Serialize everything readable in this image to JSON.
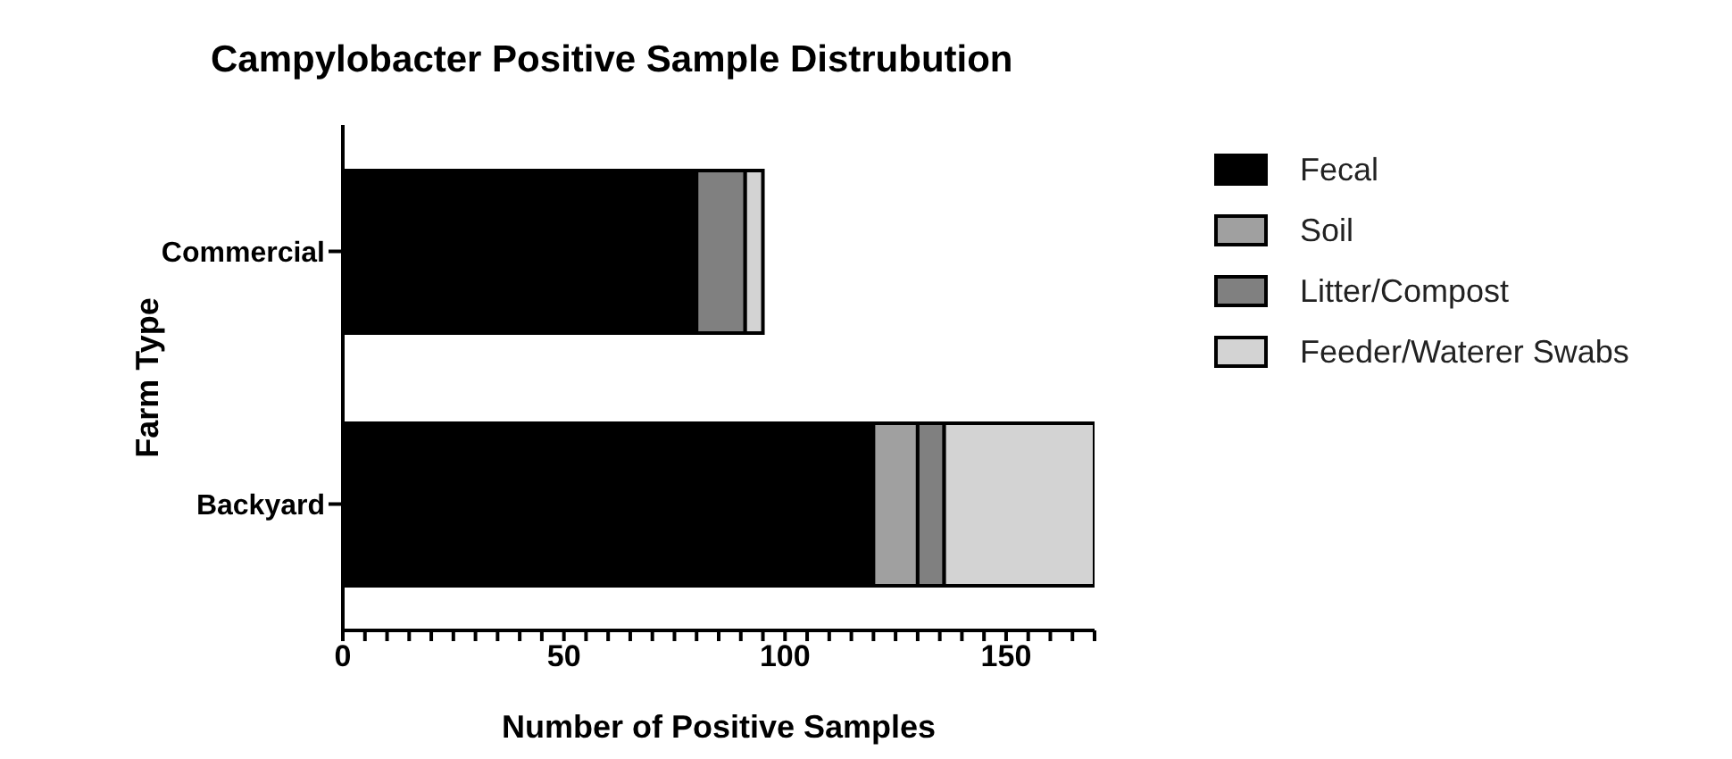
{
  "chart_data": {
    "type": "bar",
    "orientation": "horizontal",
    "stacked": true,
    "title": "Campylobacter Positive Sample Distrubution",
    "xlabel": "Number of Positive Samples",
    "ylabel": "Farm Type",
    "categories": [
      "Commercial",
      "Backyard"
    ],
    "series": [
      {
        "name": "Fecal",
        "color": "#000000",
        "values": [
          80,
          120
        ]
      },
      {
        "name": "Soil",
        "color": "#a0a0a0",
        "values": [
          0,
          10
        ]
      },
      {
        "name": "Litter/Compost",
        "color": "#808080",
        "values": [
          11,
          6
        ]
      },
      {
        "name": "Feeder/Waterer Swabs",
        "color": "#d3d3d3",
        "values": [
          4,
          34
        ]
      }
    ],
    "xlim": [
      0,
      170
    ],
    "xticks": [
      0,
      {
        "value": 5,
        "label": null
      },
      {
        "value": 10,
        "label": null
      },
      {
        "value": 15,
        "label": null
      },
      {
        "value": 20,
        "label": null
      },
      {
        "value": 25,
        "label": null
      },
      {
        "value": 30,
        "label": null
      },
      {
        "value": 35,
        "label": null
      },
      {
        "value": 40,
        "label": null
      },
      {
        "value": 45,
        "label": null
      },
      50,
      {
        "value": 55,
        "label": null
      },
      {
        "value": 60,
        "label": null
      },
      {
        "value": 65,
        "label": null
      },
      {
        "value": 70,
        "label": null
      },
      {
        "value": 75,
        "label": null
      },
      {
        "value": 80,
        "label": null
      },
      {
        "value": 85,
        "label": null
      },
      {
        "value": 90,
        "label": null
      },
      {
        "value": 95,
        "label": null
      },
      100,
      {
        "value": 105,
        "label": null
      },
      {
        "value": 110,
        "label": null
      },
      {
        "value": 115,
        "label": null
      },
      {
        "value": 120,
        "label": null
      },
      {
        "value": 125,
        "label": null
      },
      {
        "value": 130,
        "label": null
      },
      {
        "value": 135,
        "label": null
      },
      {
        "value": 140,
        "label": null
      },
      {
        "value": 145,
        "label": null
      },
      150,
      {
        "value": 155,
        "label": null
      },
      {
        "value": 160,
        "label": null
      },
      {
        "value": 165,
        "label": null
      },
      {
        "value": 170,
        "label": null
      }
    ],
    "grid": false,
    "legend": "top right"
  }
}
